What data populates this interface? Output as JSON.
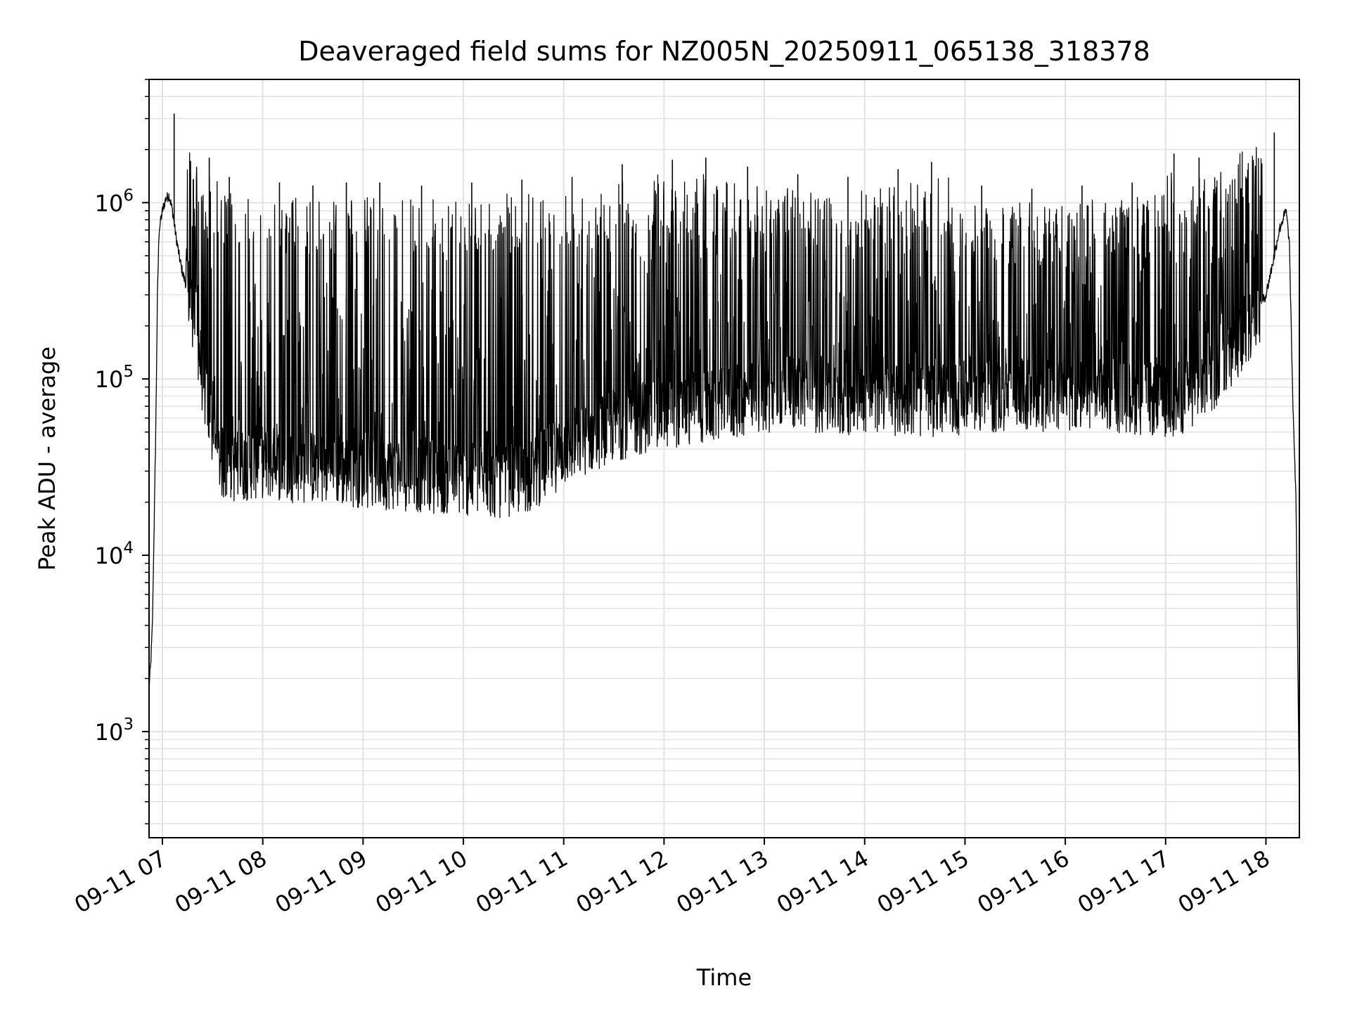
{
  "chart_data": {
    "type": "line",
    "title": "Deaveraged field sums for NZ005N_20250911_065138_318378",
    "xlabel": "Time",
    "ylabel": "Peak ADU - average",
    "yscale": "log",
    "xlim": [
      "2025-09-11 06:52",
      "2025-09-11 18:20"
    ],
    "ylim": [
      250,
      5000000
    ],
    "grid": true,
    "legend": "none",
    "line_color": "#000000",
    "grid_color": "#e3e3e3",
    "x_tick_values": [
      "2025-09-11 07:00",
      "2025-09-11 08:00",
      "2025-09-11 09:00",
      "2025-09-11 10:00",
      "2025-09-11 11:00",
      "2025-09-11 12:00",
      "2025-09-11 13:00",
      "2025-09-11 14:00",
      "2025-09-11 15:00",
      "2025-09-11 16:00",
      "2025-09-11 17:00",
      "2025-09-11 18:00"
    ],
    "x_tick_labels": [
      "09-11 07",
      "09-11 08",
      "09-11 09",
      "09-11 10",
      "09-11 11",
      "09-11 12",
      "09-11 13",
      "09-11 14",
      "09-11 15",
      "09-11 16",
      "09-11 17",
      "09-11 18"
    ],
    "y_ticks": [
      {
        "value": 1000,
        "base": "10",
        "exp": "3"
      },
      {
        "value": 10000,
        "base": "10",
        "exp": "4"
      },
      {
        "value": 100000,
        "base": "10",
        "exp": "5"
      },
      {
        "value": 1000000,
        "base": "10",
        "exp": "6"
      }
    ],
    "series": [
      {
        "x": [
          "2025-09-11 06:52",
          "2025-09-11 06:53",
          "2025-09-11 06:54",
          "2025-09-11 06:56",
          "2025-09-11 06:57",
          "2025-09-11 06:58",
          "2025-09-11 07:00",
          "2025-09-11 07:02",
          "2025-09-11 07:04",
          "2025-09-11 07:06",
          "2025-09-11 07:08",
          "2025-09-11 07:10",
          "2025-09-11 07:12",
          "2025-09-11 07:16",
          "2025-09-11 07:20",
          "2025-09-11 07:24",
          "2025-09-11 07:28",
          "2025-09-11 07:32",
          "2025-09-11 07:36",
          "2025-09-11 07:40",
          "2025-09-11 07:45",
          "2025-09-11 07:50",
          "2025-09-11 08:00",
          "2025-09-11 08:20",
          "2025-09-11 08:40",
          "2025-09-11 09:00",
          "2025-09-11 09:20",
          "2025-09-11 09:40",
          "2025-09-11 10:00",
          "2025-09-11 10:20",
          "2025-09-11 10:40",
          "2025-09-11 11:00",
          "2025-09-11 11:30",
          "2025-09-11 12:00",
          "2025-09-11 12:30",
          "2025-09-11 13:00",
          "2025-09-11 13:20",
          "2025-09-11 13:40",
          "2025-09-11 14:00",
          "2025-09-11 14:30",
          "2025-09-11 15:00",
          "2025-09-11 15:30",
          "2025-09-11 16:00",
          "2025-09-11 16:30",
          "2025-09-11 17:00",
          "2025-09-11 17:15",
          "2025-09-11 17:30",
          "2025-09-11 17:40",
          "2025-09-11 17:50",
          "2025-09-11 18:00",
          "2025-09-11 18:05",
          "2025-09-11 18:08",
          "2025-09-11 18:10",
          "2025-09-11 18:12",
          "2025-09-11 18:14",
          "2025-09-11 18:16",
          "2025-09-11 18:18",
          "2025-09-11 18:20"
        ],
        "y": [
          1800,
          2400,
          4000,
          50000,
          300000,
          700000,
          900000,
          1050000,
          1100000,
          900000,
          650000,
          500000,
          400000,
          300000,
          200000,
          100000,
          60000,
          40000,
          33000,
          32000,
          32000,
          33000,
          34000,
          32000,
          31000,
          30000,
          29000,
          28000,
          27000,
          26000,
          28000,
          40000,
          55000,
          65000,
          70000,
          80000,
          85000,
          75000,
          80000,
          75000,
          78000,
          80000,
          82000,
          80000,
          75000,
          80000,
          110000,
          150000,
          200000,
          300000,
          500000,
          700000,
          800000,
          900000,
          600000,
          80000,
          20000,
          400
        ]
      }
    ],
    "spikes": [
      {
        "x": "2025-09-11 07:07",
        "y": 3200000
      },
      {
        "x": "2025-09-11 07:28",
        "y": 1800000
      },
      {
        "x": "2025-09-11 07:40",
        "y": 1400000
      },
      {
        "x": "2025-09-11 08:10",
        "y": 1300000
      },
      {
        "x": "2025-09-11 08:30",
        "y": 1250000
      },
      {
        "x": "2025-09-11 08:50",
        "y": 1300000
      },
      {
        "x": "2025-09-11 09:10",
        "y": 1300000
      },
      {
        "x": "2025-09-11 09:35",
        "y": 1250000
      },
      {
        "x": "2025-09-11 10:05",
        "y": 1300000
      },
      {
        "x": "2025-09-11 10:35",
        "y": 1350000
      },
      {
        "x": "2025-09-11 11:05",
        "y": 1400000
      },
      {
        "x": "2025-09-11 11:35",
        "y": 1650000
      },
      {
        "x": "2025-09-11 12:05",
        "y": 1750000
      },
      {
        "x": "2025-09-11 12:25",
        "y": 1800000
      },
      {
        "x": "2025-09-11 12:50",
        "y": 1600000
      },
      {
        "x": "2025-09-11 13:20",
        "y": 1450000
      },
      {
        "x": "2025-09-11 13:50",
        "y": 1400000
      },
      {
        "x": "2025-09-11 14:20",
        "y": 1550000
      },
      {
        "x": "2025-09-11 14:40",
        "y": 1700000
      },
      {
        "x": "2025-09-11 15:10",
        "y": 1250000
      },
      {
        "x": "2025-09-11 15:40",
        "y": 1200000
      },
      {
        "x": "2025-09-11 16:10",
        "y": 1250000
      },
      {
        "x": "2025-09-11 16:40",
        "y": 1300000
      },
      {
        "x": "2025-09-11 17:05",
        "y": 1900000
      },
      {
        "x": "2025-09-11 17:20",
        "y": 1800000
      },
      {
        "x": "2025-09-11 18:05",
        "y": 2500000
      }
    ]
  }
}
